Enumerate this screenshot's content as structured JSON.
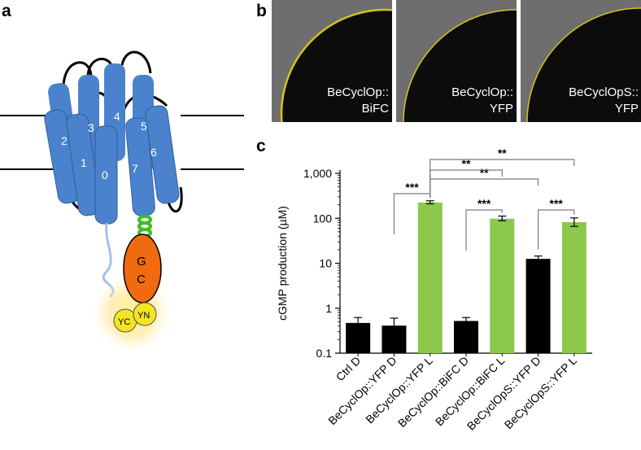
{
  "panels": {
    "a": "a",
    "b": "b",
    "c": "c"
  },
  "schematic": {
    "helices": [
      "0",
      "1",
      "2",
      "3",
      "4",
      "5",
      "6",
      "7"
    ],
    "gc_line1": "G",
    "gc_line2": "C",
    "yc": "YC",
    "yn": "YN",
    "colors": {
      "helix": "#4a82cd",
      "gc": "#f06a0f",
      "yfp": "#f4e423",
      "coil": "#3fbf2a"
    }
  },
  "micrographs": [
    {
      "line1": "BeCyclOp::",
      "line2": "BiFC"
    },
    {
      "line1": "BeCyclOp::",
      "line2": "YFP"
    },
    {
      "line1": "BeCyclOpS::",
      "line2": "YFP"
    }
  ],
  "chart_data": {
    "type": "bar",
    "ylabel": "cGMP production (µM)",
    "yscale": "log",
    "ylim": [
      0.1,
      1000
    ],
    "yticks": [
      "0.1",
      "1",
      "10",
      "100",
      "1,000"
    ],
    "categories": [
      "Ctrl D",
      "BeCyclOp::YFP D",
      "BeCyclOp::YFP L",
      "BeCyclOp::BiFC D",
      "BeCyclOp::BiFC L",
      "BeCyclOpS::YFP D",
      "BeCyclOpS::YFP L"
    ],
    "values": [
      0.47,
      0.41,
      225,
      0.52,
      98,
      12.5,
      82
    ],
    "errors_upper": [
      0.62,
      0.6,
      245,
      0.62,
      112,
      14.5,
      102
    ],
    "errors_lower": [
      0.37,
      0.3,
      210,
      0.44,
      88,
      10.8,
      66
    ],
    "bar_colors": [
      "#000000",
      "#000000",
      "#8cc84b",
      "#000000",
      "#8cc84b",
      "#000000",
      "#8cc84b"
    ],
    "significance": [
      {
        "from": 1,
        "to": 2,
        "label": "***"
      },
      {
        "from": 3,
        "to": 4,
        "label": "***"
      },
      {
        "from": 5,
        "to": 6,
        "label": "***"
      },
      {
        "from": 2,
        "to": 5,
        "label": "**"
      },
      {
        "from": 2,
        "to": 4,
        "label": "**"
      },
      {
        "from": 2,
        "to": 6,
        "label": "**"
      }
    ]
  }
}
